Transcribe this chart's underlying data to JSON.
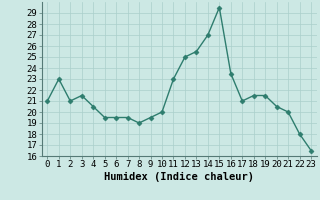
{
  "xlabel": "Humidex (Indice chaleur)",
  "ylabel": "",
  "x": [
    0,
    1,
    2,
    3,
    4,
    5,
    6,
    7,
    8,
    9,
    10,
    11,
    12,
    13,
    14,
    15,
    16,
    17,
    18,
    19,
    20,
    21,
    22,
    23
  ],
  "y": [
    21.0,
    23.0,
    21.0,
    21.5,
    20.5,
    19.5,
    19.5,
    19.5,
    19.0,
    19.5,
    20.0,
    23.0,
    25.0,
    25.5,
    27.0,
    29.5,
    23.5,
    21.0,
    21.5,
    21.5,
    20.5,
    20.0,
    18.0,
    16.5
  ],
  "line_color": "#2e7d6e",
  "marker": "D",
  "marker_size": 2.5,
  "bg_color": "#cce8e4",
  "grid_color": "#aacfcb",
  "ylim": [
    16,
    30
  ],
  "yticks": [
    16,
    17,
    18,
    19,
    20,
    21,
    22,
    23,
    24,
    25,
    26,
    27,
    28,
    29
  ],
  "tick_fontsize": 6.5,
  "label_fontsize": 7.5
}
